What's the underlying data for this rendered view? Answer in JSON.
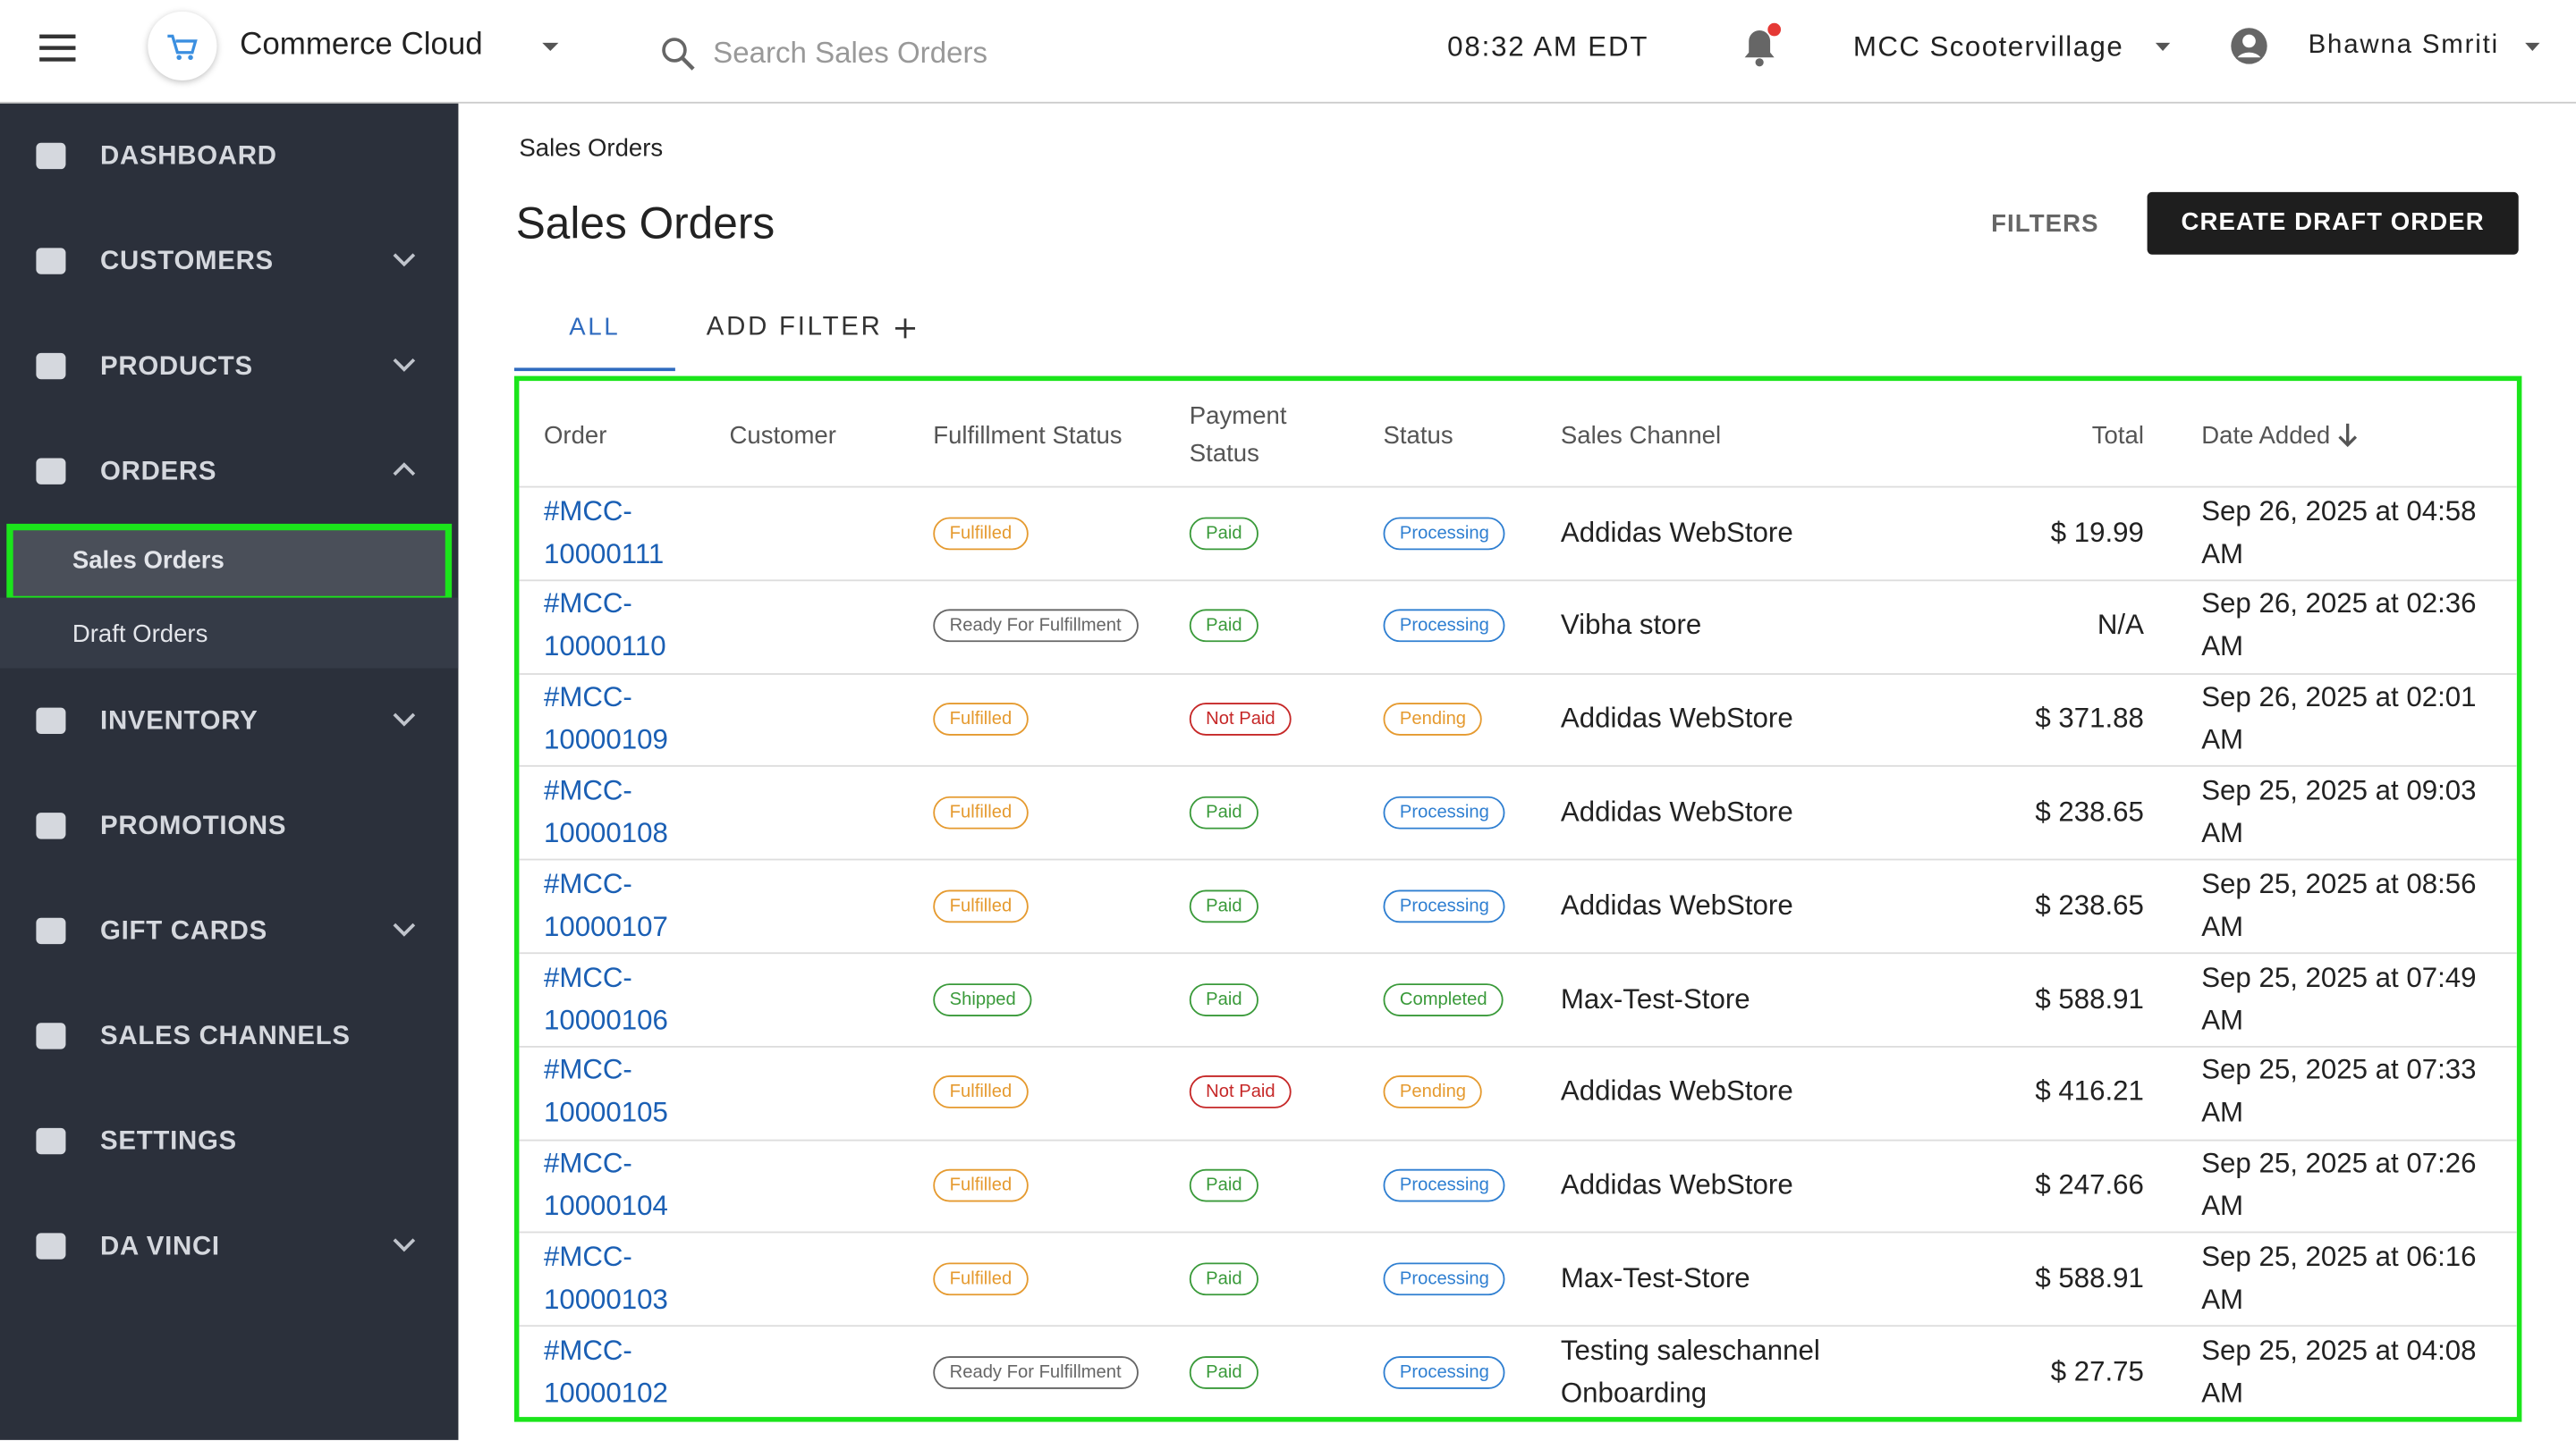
{
  "header": {
    "app_name": "Commerce Cloud",
    "search_placeholder": "Search Sales Orders",
    "time": "08:32 AM EDT",
    "store": "MCC Scootervillage",
    "user": "Bhawna Smriti"
  },
  "sidebar": [
    {
      "label": "DASHBOARD"
    },
    {
      "label": "CUSTOMERS",
      "chevron": "down"
    },
    {
      "label": "PRODUCTS",
      "chevron": "down"
    },
    {
      "label": "ORDERS",
      "chevron": "up",
      "children": [
        {
          "label": "Sales Orders",
          "active": true
        },
        {
          "label": "Draft Orders"
        }
      ]
    },
    {
      "label": "INVENTORY",
      "chevron": "down"
    },
    {
      "label": "PROMOTIONS"
    },
    {
      "label": "GIFT CARDS",
      "chevron": "down"
    },
    {
      "label": "SALES CHANNELS"
    },
    {
      "label": "SETTINGS"
    },
    {
      "label": "DA VINCI",
      "chevron": "down"
    }
  ],
  "page": {
    "breadcrumb": "Sales Orders",
    "title": "Sales Orders",
    "filters": "FILTERS",
    "create_button": "CREATE DRAFT ORDER",
    "tabs": [
      "ALL",
      "ADD FILTER"
    ]
  },
  "table": {
    "columns": [
      "Order",
      "Customer",
      "Fulfillment Status",
      "Payment Status",
      "Status",
      "Sales Channel",
      "Total",
      "Date Added"
    ],
    "rows": [
      {
        "order": "#MCC-10000111",
        "fulfillment": {
          "label": "Fulfilled",
          "color": "#e59a2f"
        },
        "payment": {
          "label": "Paid",
          "color": "#3a9a3a"
        },
        "status": {
          "label": "Processing",
          "color": "#2f7fd1"
        },
        "channel": "Addidas WebStore",
        "total": "$ 19.99",
        "date": "Sep 26, 2025 at 04:58 AM"
      },
      {
        "order": "#MCC-10000110",
        "fulfillment": {
          "label": "Ready For Fulfillment",
          "color": "#666666"
        },
        "payment": {
          "label": "Paid",
          "color": "#3a9a3a"
        },
        "status": {
          "label": "Processing",
          "color": "#2f7fd1"
        },
        "channel": "Vibha store",
        "total": "N/A",
        "date": "Sep 26, 2025 at 02:36 AM"
      },
      {
        "order": "#MCC-10000109",
        "fulfillment": {
          "label": "Fulfilled",
          "color": "#e59a2f"
        },
        "payment": {
          "label": "Not Paid",
          "color": "#c62828"
        },
        "status": {
          "label": "Pending",
          "color": "#e59a2f"
        },
        "channel": "Addidas WebStore",
        "total": "$ 371.88",
        "date": "Sep 26, 2025 at 02:01 AM"
      },
      {
        "order": "#MCC-10000108",
        "fulfillment": {
          "label": "Fulfilled",
          "color": "#e59a2f"
        },
        "payment": {
          "label": "Paid",
          "color": "#3a9a3a"
        },
        "status": {
          "label": "Processing",
          "color": "#2f7fd1"
        },
        "channel": "Addidas WebStore",
        "total": "$ 238.65",
        "date": "Sep 25, 2025 at 09:03 AM"
      },
      {
        "order": "#MCC-10000107",
        "fulfillment": {
          "label": "Fulfilled",
          "color": "#e59a2f"
        },
        "payment": {
          "label": "Paid",
          "color": "#3a9a3a"
        },
        "status": {
          "label": "Processing",
          "color": "#2f7fd1"
        },
        "channel": "Addidas WebStore",
        "total": "$ 238.65",
        "date": "Sep 25, 2025 at 08:56 AM"
      },
      {
        "order": "#MCC-10000106",
        "fulfillment": {
          "label": "Shipped",
          "color": "#3a9a3a"
        },
        "payment": {
          "label": "Paid",
          "color": "#3a9a3a"
        },
        "status": {
          "label": "Completed",
          "color": "#3a9a3a"
        },
        "channel": "Max-Test-Store",
        "total": "$ 588.91",
        "date": "Sep 25, 2025 at 07:49 AM"
      },
      {
        "order": "#MCC-10000105",
        "fulfillment": {
          "label": "Fulfilled",
          "color": "#e59a2f"
        },
        "payment": {
          "label": "Not Paid",
          "color": "#c62828"
        },
        "status": {
          "label": "Pending",
          "color": "#e59a2f"
        },
        "channel": "Addidas WebStore",
        "total": "$ 416.21",
        "date": "Sep 25, 2025 at 07:33 AM"
      },
      {
        "order": "#MCC-10000104",
        "fulfillment": {
          "label": "Fulfilled",
          "color": "#e59a2f"
        },
        "payment": {
          "label": "Paid",
          "color": "#3a9a3a"
        },
        "status": {
          "label": "Processing",
          "color": "#2f7fd1"
        },
        "channel": "Addidas WebStore",
        "total": "$ 247.66",
        "date": "Sep 25, 2025 at 07:26 AM"
      },
      {
        "order": "#MCC-10000103",
        "fulfillment": {
          "label": "Fulfilled",
          "color": "#e59a2f"
        },
        "payment": {
          "label": "Paid",
          "color": "#3a9a3a"
        },
        "status": {
          "label": "Processing",
          "color": "#2f7fd1"
        },
        "channel": "Max-Test-Store",
        "total": "$ 588.91",
        "date": "Sep 25, 2025 at 06:16 AM"
      },
      {
        "order": "#MCC-10000102",
        "fulfillment": {
          "label": "Ready For Fulfillment",
          "color": "#666666"
        },
        "payment": {
          "label": "Paid",
          "color": "#3a9a3a"
        },
        "status": {
          "label": "Processing",
          "color": "#2f7fd1"
        },
        "channel": "Testing saleschannel Onboarding",
        "total": "$ 27.75",
        "date": "Sep 25, 2025 at 04:08 AM"
      }
    ]
  }
}
